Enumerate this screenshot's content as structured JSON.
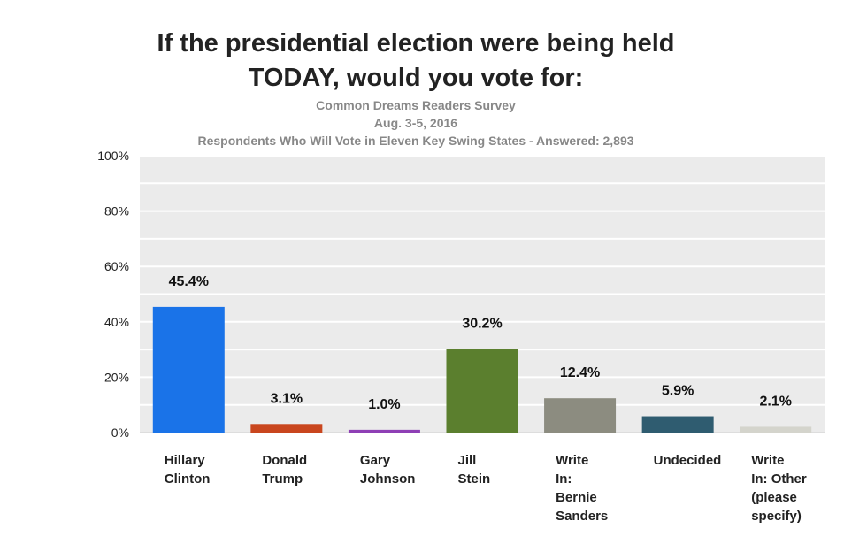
{
  "chart_data": {
    "type": "bar",
    "title_line1": "If the presidential election were being held",
    "title_line2": "TODAY, would you vote for:",
    "subtitle_line1": "Common Dreams Readers Survey",
    "subtitle_line2": "Aug. 3-5, 2016",
    "subtitle_line3": "Respondents Who Will Vote in Eleven Key Swing States - Answered:  2,893",
    "categories": [
      [
        "Hillary",
        "Clinton"
      ],
      [
        "Donald",
        "Trump"
      ],
      [
        "Gary",
        "Johnson"
      ],
      [
        "Jill",
        "Stein"
      ],
      [
        "Write",
        "In:",
        "Bernie",
        "Sanders"
      ],
      [
        "Undecided"
      ],
      [
        "Write",
        "In: Other",
        "(please",
        "specify)"
      ]
    ],
    "values": [
      45.4,
      3.1,
      1.0,
      30.2,
      12.4,
      5.9,
      2.1
    ],
    "value_labels": [
      "45.4%",
      "3.1%",
      "1.0%",
      "30.2%",
      "12.4%",
      "5.9%",
      "2.1%"
    ],
    "colors": [
      "#1a73e8",
      "#c9461e",
      "#8e3fb5",
      "#5b7f2e",
      "#8c8c80",
      "#2f5c70",
      "#d4d4cc"
    ],
    "ylim": [
      0,
      100
    ],
    "yticks": [
      0,
      20,
      40,
      60,
      80,
      100
    ],
    "ytick_labels": [
      "0%",
      "20%",
      "40%",
      "60%",
      "80%",
      "100%"
    ],
    "grid": true,
    "xlabel": "",
    "ylabel": ""
  }
}
